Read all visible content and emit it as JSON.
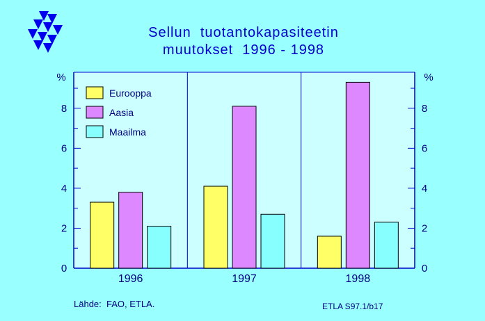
{
  "colors": {
    "background": "#99FFFF",
    "plot_area": "#CCFFFF",
    "axis": "#0000CC",
    "title": "#0000CC",
    "logo": "#0000EE"
  },
  "chart_data": {
    "type": "bar",
    "title_line1": "Sellun  tuotantokapasiteetin",
    "title_line2": "muutokset  1996 - 1998",
    "categories": [
      "1996",
      "1997",
      "1998"
    ],
    "series": [
      {
        "name": "Eurooppa",
        "color": "#FFFF66",
        "values": [
          3.3,
          4.1,
          1.6
        ]
      },
      {
        "name": "Aasia",
        "color": "#DD88FF",
        "values": [
          3.8,
          8.1,
          9.3
        ]
      },
      {
        "name": "Maailma",
        "color": "#88FFFF",
        "values": [
          2.1,
          2.7,
          2.3
        ]
      }
    ],
    "ylim": [
      0,
      9.8
    ],
    "yticks": [
      0,
      2,
      4,
      6,
      8
    ],
    "ylabel_left": "%",
    "ylabel_right": "%",
    "grid": "vertical category separators",
    "legend": "top-left inside plot"
  },
  "footer": {
    "source": "Lähde:  FAO, ETLA.",
    "code": "ETLA S97.1/b17"
  }
}
